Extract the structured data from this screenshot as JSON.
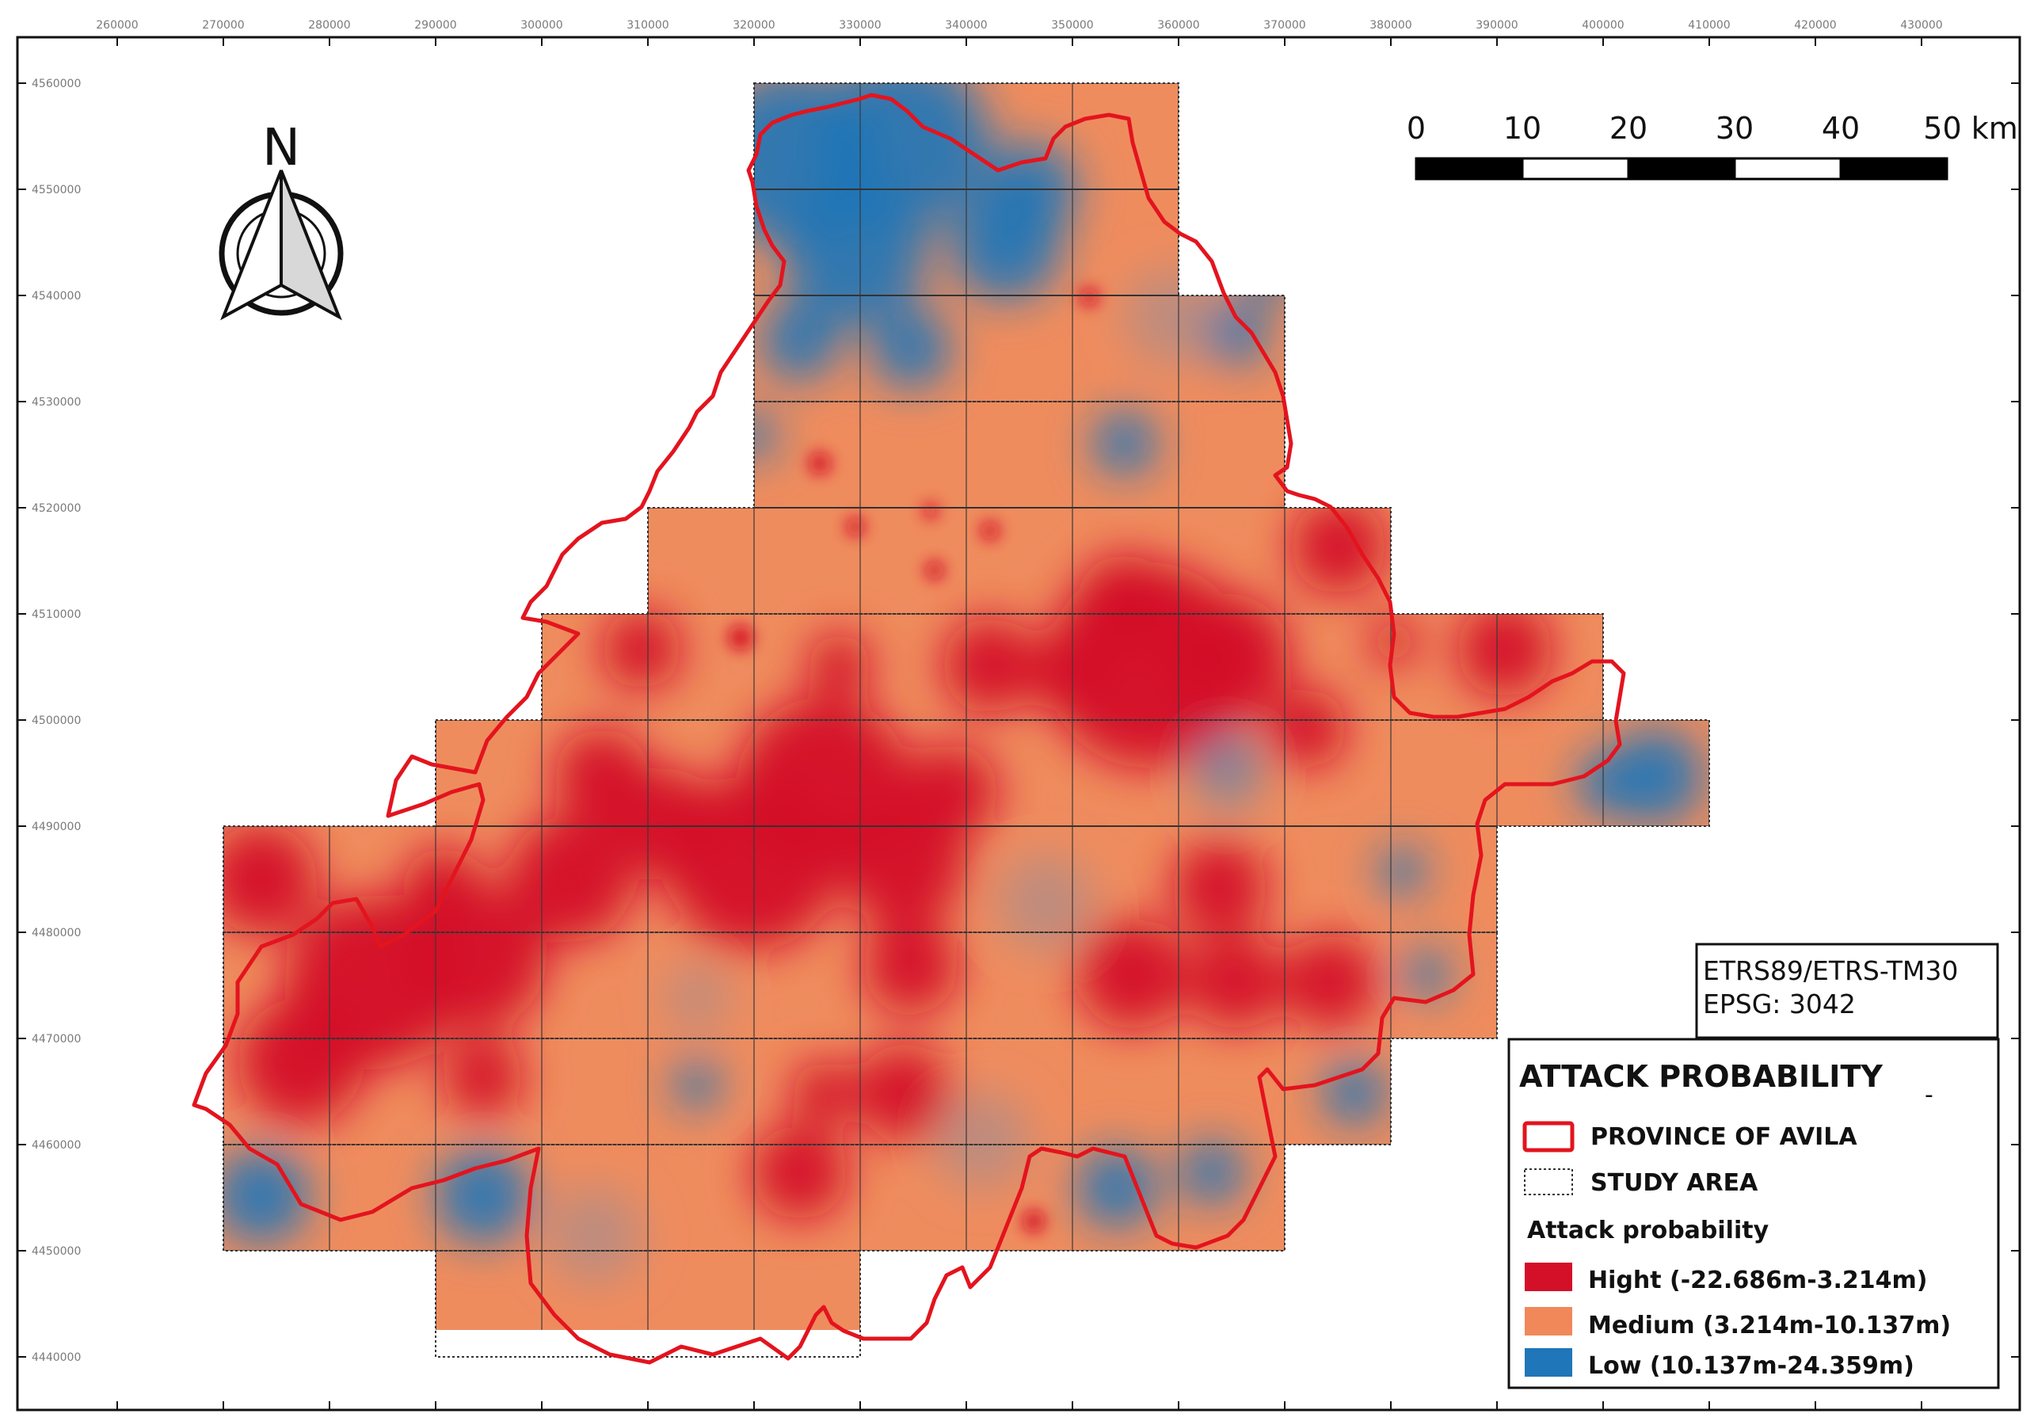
{
  "x_ticks": [
    "260000",
    "270000",
    "280000",
    "290000",
    "300000",
    "310000",
    "320000",
    "330000",
    "340000",
    "350000",
    "360000",
    "370000",
    "380000",
    "390000",
    "400000",
    "410000",
    "420000",
    "430000"
  ],
  "y_ticks": [
    "4560000",
    "4550000",
    "4540000",
    "4530000",
    "4520000",
    "4510000",
    "4500000",
    "4490000",
    "4480000",
    "4470000",
    "4460000",
    "4450000",
    "4440000"
  ],
  "north_arrow": {
    "label": "N",
    "icon": "north-arrow-icon"
  },
  "scale_bar": {
    "labels": [
      "0",
      "10",
      "20",
      "30",
      "40",
      "50 km"
    ]
  },
  "crs": {
    "line1": "ETRS89/ETRS-TM30",
    "line2": "EPSG: 3042"
  },
  "legend": {
    "title": "ATTACK PROBABILITY",
    "province": "PROVINCE OF AVILA",
    "study_area": "STUDY AREA",
    "subtitle": "Attack probability",
    "classes": [
      {
        "label": "Hight (-22.686m-3.214m)",
        "color": "#d40f28"
      },
      {
        "label": "Medium (3.214m-10.137m)",
        "color": "#f0885a"
      },
      {
        "label": "Low (10.137m-24.359m)",
        "color": "#1f76b8"
      }
    ]
  },
  "colors": {
    "province_border": "#e3141e",
    "grid": "#333333",
    "frame": "#111111"
  }
}
